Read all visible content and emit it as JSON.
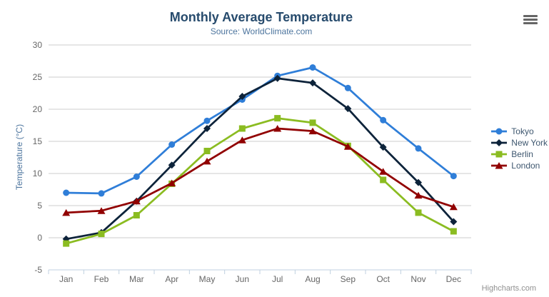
{
  "chart_data": {
    "type": "line",
    "title": "Monthly Average Temperature",
    "subtitle": "Source: WorldClimate.com",
    "categories": [
      "Jan",
      "Feb",
      "Mar",
      "Apr",
      "May",
      "Jun",
      "Jul",
      "Aug",
      "Sep",
      "Oct",
      "Nov",
      "Dec"
    ],
    "series": [
      {
        "name": "Tokyo",
        "color": "#2f7ed8",
        "marker": "circle",
        "values": [
          7.0,
          6.9,
          9.5,
          14.5,
          18.2,
          21.5,
          25.2,
          26.5,
          23.3,
          18.3,
          13.9,
          9.6
        ]
      },
      {
        "name": "New York",
        "color": "#0d233a",
        "marker": "diamond",
        "values": [
          -0.2,
          0.8,
          5.7,
          11.3,
          17.0,
          22.0,
          24.8,
          24.1,
          20.1,
          14.1,
          8.6,
          2.5
        ]
      },
      {
        "name": "Berlin",
        "color": "#8bbc21",
        "marker": "square",
        "values": [
          -0.9,
          0.6,
          3.5,
          8.4,
          13.5,
          17.0,
          18.6,
          17.9,
          14.3,
          9.0,
          3.9,
          1.0
        ]
      },
      {
        "name": "London",
        "color": "#910000",
        "marker": "triangle",
        "values": [
          3.9,
          4.2,
          5.7,
          8.5,
          11.9,
          15.2,
          17.0,
          16.6,
          14.2,
          10.3,
          6.6,
          4.8
        ]
      }
    ],
    "xlabel": "",
    "ylabel": "Temperature (°C)",
    "ylim": [
      -5,
      30
    ],
    "ytick_step": 5,
    "grid": true,
    "legend_position": "right"
  },
  "credit": "Highcharts.com",
  "icons": {
    "export_menu": "hamburger-icon"
  },
  "colors": {
    "title": "#274b6d",
    "subtitle": "#4d759e",
    "axis_title": "#4d759e",
    "tick_label": "#666666",
    "gridline": "#cccccc",
    "axis_line": "#c0d0e0",
    "legend_text": "#3e576f",
    "credit": "#909090",
    "background": "#ffffff"
  }
}
